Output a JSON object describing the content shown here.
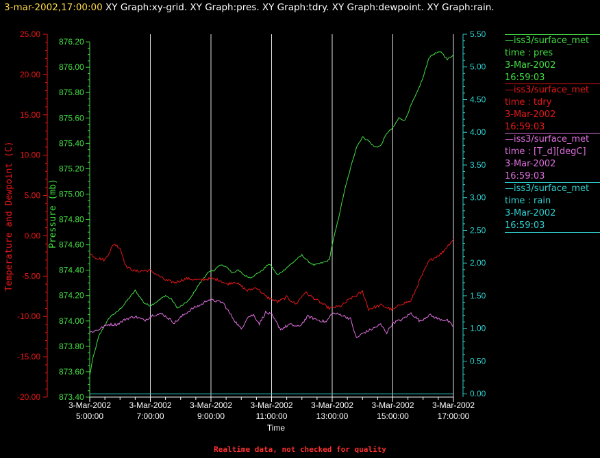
{
  "header": {
    "timestamp": "3-mar-2002,17:00:00",
    "titles": "XY Graph:xy-grid.  XY Graph:pres.  XY Graph:tdry.  XY Graph:dewpoint.  XY Graph:rain."
  },
  "footer": "Realtime data, not checked for quality",
  "colors": {
    "background": "#000000",
    "grid": "#e0e0e0",
    "pres": "#44e044",
    "tdry": "#e81818",
    "dewpoint": "#e070e0",
    "rain": "#30d0d0"
  },
  "legend": [
    {
      "name": "iss3/surface_met",
      "label": "time : pres",
      "date": "3-Mar-2002",
      "time": "16:59:03",
      "color": "#44e044"
    },
    {
      "name": "iss3/surface_met",
      "label": "time : tdry",
      "date": "3-Mar-2002",
      "time": "16:59:03",
      "color": "#e81818"
    },
    {
      "name": "iss3/surface_met",
      "label": "time : [T_d][degC]",
      "date": "3-Mar-2002",
      "time": "16:59:03",
      "color": "#e070e0"
    },
    {
      "name": "iss3/surface_met",
      "label": "time : rain",
      "date": "3-Mar-2002",
      "time": "16:59:03",
      "color": "#30d0d0"
    }
  ],
  "chart_data": {
    "type": "line",
    "xlabel": "Time",
    "x_range": [
      "3-Mar-2002 5:00:00",
      "3-Mar-2002 17:00:00"
    ],
    "x_ticks": [
      {
        "date": "3-Mar-2002",
        "time": "5:00:00"
      },
      {
        "date": "3-Mar-2002",
        "time": "7:00:00"
      },
      {
        "date": "3-Mar-2002",
        "time": "9:00:00"
      },
      {
        "date": "3-Mar-2002",
        "time": "11:00:00"
      },
      {
        "date": "3-Mar-2002",
        "time": "13:00:00"
      },
      {
        "date": "3-Mar-2002",
        "time": "15:00:00"
      },
      {
        "date": "3-Mar-2002",
        "time": "17:00:00"
      }
    ],
    "x_tick_hours": [
      5,
      7,
      9,
      11,
      13,
      15,
      17
    ],
    "axes": {
      "temperature": {
        "label": "Temperature and Dewpoint (C)",
        "range": [
          -20,
          25
        ],
        "ticks": [
          "-20.00",
          "-15.00",
          "-10.00",
          "-5.00",
          "0.00",
          "5.00",
          "10.00",
          "15.00",
          "20.00",
          "25.00"
        ]
      },
      "pressure": {
        "label": "Pressure (mb)",
        "range": [
          873.4,
          876.26
        ],
        "ticks": [
          "873.40",
          "873.60",
          "873.80",
          "874.00",
          "874.20",
          "874.40",
          "874.60",
          "874.80",
          "875.00",
          "875.20",
          "875.40",
          "875.60",
          "875.80",
          "876.00",
          "876.20"
        ]
      },
      "rain": {
        "label": "",
        "range": [
          -0.05,
          5.5
        ],
        "ticks": [
          "0.00",
          "0.50",
          "1.00",
          "1.50",
          "2.00",
          "2.50",
          "3.00",
          "3.50",
          "4.00",
          "4.50",
          "5.00",
          "5.50"
        ]
      }
    },
    "grid": "vertical lines at each x tick",
    "series": [
      {
        "name": "pres",
        "axis": "pressure",
        "color": "#44e044",
        "points": [
          [
            5.0,
            873.57
          ],
          [
            5.1,
            873.7
          ],
          [
            5.3,
            873.88
          ],
          [
            5.5,
            873.97
          ],
          [
            5.7,
            874.04
          ],
          [
            5.9,
            874.07
          ],
          [
            6.1,
            874.12
          ],
          [
            6.3,
            874.18
          ],
          [
            6.5,
            874.24
          ],
          [
            6.8,
            874.14
          ],
          [
            7.0,
            874.12
          ],
          [
            7.2,
            874.15
          ],
          [
            7.5,
            874.2
          ],
          [
            7.7,
            874.17
          ],
          [
            7.9,
            874.1
          ],
          [
            8.1,
            874.13
          ],
          [
            8.3,
            874.17
          ],
          [
            8.5,
            874.25
          ],
          [
            8.7,
            874.32
          ],
          [
            8.9,
            874.38
          ],
          [
            9.1,
            874.4
          ],
          [
            9.3,
            874.44
          ],
          [
            9.5,
            874.43
          ],
          [
            9.7,
            874.38
          ],
          [
            9.9,
            874.4
          ],
          [
            10.1,
            874.36
          ],
          [
            10.3,
            874.34
          ],
          [
            10.5,
            874.37
          ],
          [
            10.7,
            874.4
          ],
          [
            10.9,
            874.45
          ],
          [
            11.0,
            874.43
          ],
          [
            11.2,
            874.36
          ],
          [
            11.4,
            874.4
          ],
          [
            11.6,
            874.44
          ],
          [
            11.8,
            874.48
          ],
          [
            12.0,
            874.52
          ],
          [
            12.2,
            874.47
          ],
          [
            12.4,
            874.44
          ],
          [
            12.7,
            874.46
          ],
          [
            12.9,
            874.48
          ],
          [
            13.0,
            874.6
          ],
          [
            13.2,
            874.8
          ],
          [
            13.4,
            875.02
          ],
          [
            13.6,
            875.2
          ],
          [
            13.8,
            875.37
          ],
          [
            14.0,
            875.45
          ],
          [
            14.2,
            875.42
          ],
          [
            14.4,
            875.37
          ],
          [
            14.6,
            875.38
          ],
          [
            14.8,
            875.48
          ],
          [
            15.0,
            875.52
          ],
          [
            15.2,
            875.6
          ],
          [
            15.4,
            875.58
          ],
          [
            15.6,
            875.7
          ],
          [
            15.8,
            875.8
          ],
          [
            16.0,
            875.92
          ],
          [
            16.2,
            876.08
          ],
          [
            16.4,
            876.11
          ],
          [
            16.6,
            876.12
          ],
          [
            16.8,
            876.06
          ],
          [
            17.0,
            876.1
          ]
        ]
      },
      {
        "name": "tdry",
        "axis": "temperature",
        "color": "#e81818",
        "points": [
          [
            5.0,
            -2.2
          ],
          [
            5.2,
            -2.7
          ],
          [
            5.5,
            -3.0
          ],
          [
            5.8,
            -1.0
          ],
          [
            6.0,
            -1.5
          ],
          [
            6.2,
            -3.8
          ],
          [
            6.5,
            -4.4
          ],
          [
            7.0,
            -4.3
          ],
          [
            7.5,
            -5.5
          ],
          [
            7.8,
            -5.8
          ],
          [
            8.2,
            -5.3
          ],
          [
            8.6,
            -5.5
          ],
          [
            9.0,
            -5.3
          ],
          [
            9.3,
            -5.5
          ],
          [
            9.5,
            -6.0
          ],
          [
            9.8,
            -5.7
          ],
          [
            10.2,
            -6.8
          ],
          [
            10.5,
            -6.4
          ],
          [
            10.8,
            -7.5
          ],
          [
            11.2,
            -8.2
          ],
          [
            11.5,
            -7.6
          ],
          [
            11.8,
            -8.5
          ],
          [
            12.1,
            -7.0
          ],
          [
            12.5,
            -8.0
          ],
          [
            12.9,
            -9.0
          ],
          [
            13.3,
            -8.7
          ],
          [
            13.6,
            -7.8
          ],
          [
            13.8,
            -7.4
          ],
          [
            14.0,
            -6.9
          ],
          [
            14.2,
            -9.1
          ],
          [
            14.6,
            -8.6
          ],
          [
            15.0,
            -9.2
          ],
          [
            15.3,
            -8.4
          ],
          [
            15.6,
            -8.1
          ],
          [
            15.9,
            -5.4
          ],
          [
            16.2,
            -3.1
          ],
          [
            16.6,
            -2.2
          ],
          [
            17.0,
            -0.4
          ]
        ]
      },
      {
        "name": "[T_d][degC]",
        "axis": "temperature",
        "color": "#e070e0",
        "points": [
          [
            5.0,
            -12.0
          ],
          [
            5.3,
            -11.6
          ],
          [
            5.6,
            -11.0
          ],
          [
            5.9,
            -11.0
          ],
          [
            6.2,
            -10.3
          ],
          [
            6.5,
            -10.0
          ],
          [
            6.8,
            -10.5
          ],
          [
            7.1,
            -9.8
          ],
          [
            7.4,
            -9.7
          ],
          [
            7.8,
            -10.8
          ],
          [
            8.1,
            -9.8
          ],
          [
            8.4,
            -9.0
          ],
          [
            8.7,
            -8.5
          ],
          [
            8.9,
            -7.9
          ],
          [
            9.2,
            -8.1
          ],
          [
            9.4,
            -8.3
          ],
          [
            9.6,
            -9.5
          ],
          [
            9.8,
            -10.6
          ],
          [
            10.0,
            -11.6
          ],
          [
            10.2,
            -10.1
          ],
          [
            10.4,
            -9.8
          ],
          [
            10.6,
            -10.9
          ],
          [
            10.8,
            -9.5
          ],
          [
            11.0,
            -9.8
          ],
          [
            11.1,
            -10.4
          ],
          [
            11.3,
            -11.6
          ],
          [
            11.6,
            -11.0
          ],
          [
            11.9,
            -11.3
          ],
          [
            12.2,
            -10.0
          ],
          [
            12.5,
            -10.4
          ],
          [
            12.8,
            -10.7
          ],
          [
            13.0,
            -9.6
          ],
          [
            13.3,
            -9.8
          ],
          [
            13.6,
            -10.3
          ],
          [
            13.8,
            -12.7
          ],
          [
            14.0,
            -12.1
          ],
          [
            14.3,
            -11.6
          ],
          [
            14.6,
            -11.0
          ],
          [
            14.8,
            -12.0
          ],
          [
            15.0,
            -10.8
          ],
          [
            15.3,
            -10.4
          ],
          [
            15.6,
            -9.6
          ],
          [
            15.9,
            -10.6
          ],
          [
            16.2,
            -9.8
          ],
          [
            16.5,
            -10.3
          ],
          [
            16.8,
            -10.5
          ],
          [
            17.0,
            -11.3
          ]
        ]
      },
      {
        "name": "rain",
        "axis": "rain",
        "color": "#30d0d0",
        "points": [
          [
            5.0,
            0.0
          ],
          [
            17.0,
            0.0
          ]
        ]
      }
    ]
  }
}
